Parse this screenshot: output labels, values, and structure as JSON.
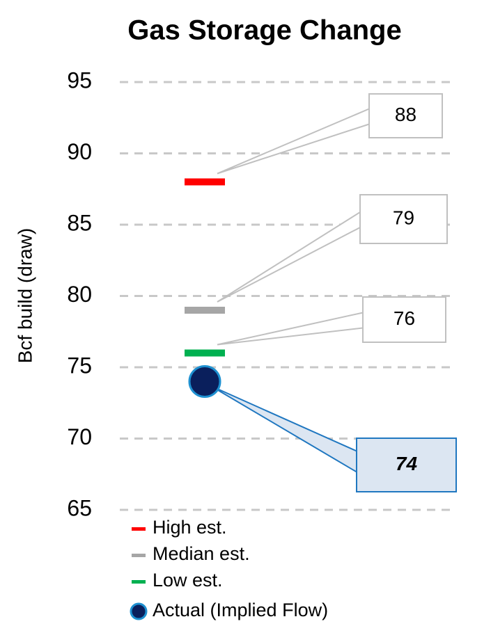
{
  "chart_data": {
    "type": "dot",
    "title": "Gas Storage Change",
    "y_label": "Bcf build (draw)",
    "ylim": [
      65,
      95
    ],
    "yticks": [
      65,
      70,
      75,
      80,
      85,
      90,
      95
    ],
    "grid": true,
    "series": [
      {
        "name": "High est.",
        "color": "#ff0000",
        "marker": "dash",
        "values": [
          88
        ]
      },
      {
        "name": "Median est.",
        "color": "#a6a6a6",
        "marker": "dash",
        "values": [
          79
        ]
      },
      {
        "name": "Low est.",
        "color": "#00b050",
        "marker": "dash",
        "values": [
          76
        ]
      },
      {
        "name": "Actual (Implied Flow)",
        "color": "#0a1f5c",
        "marker": "circle",
        "values": [
          74
        ]
      }
    ]
  }
}
